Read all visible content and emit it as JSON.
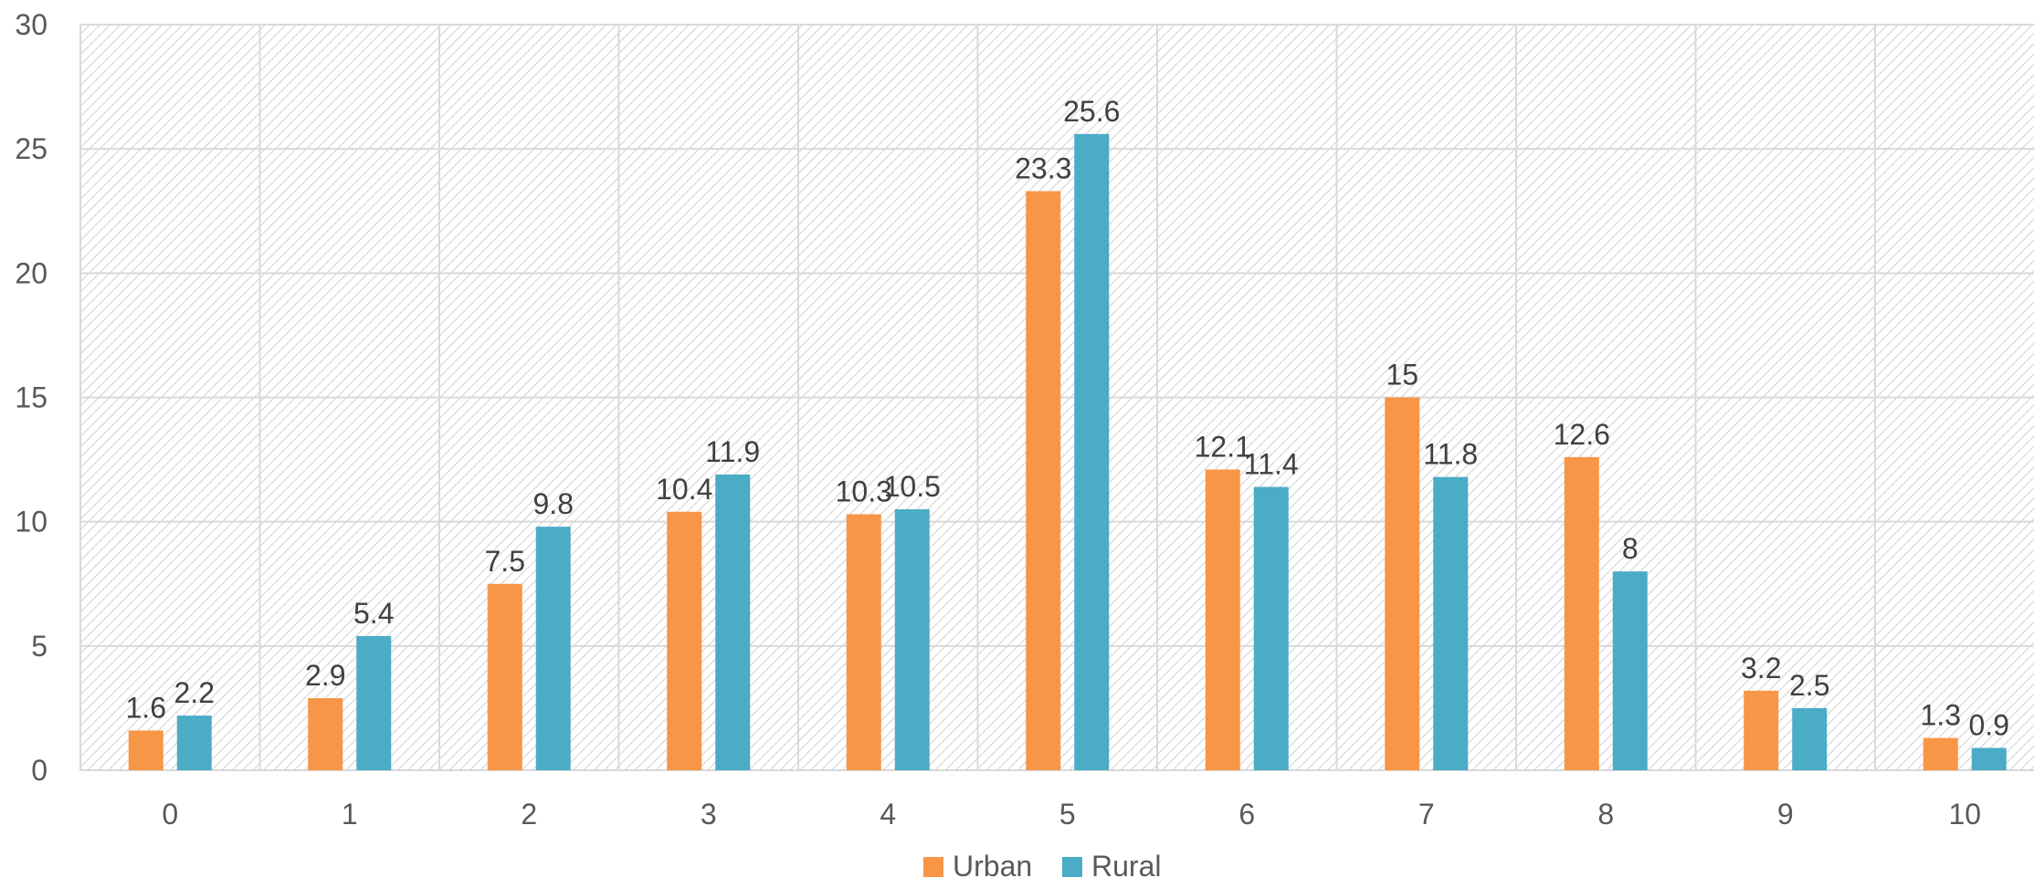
{
  "chart_data": {
    "type": "bar",
    "title": "",
    "xlabel": "",
    "ylabel": "",
    "categories": [
      "0",
      "1",
      "2",
      "3",
      "4",
      "5",
      "6",
      "7",
      "8",
      "9",
      "10"
    ],
    "series": [
      {
        "name": "Urban",
        "color": "#f79646",
        "values": [
          1.6,
          2.9,
          7.5,
          10.4,
          10.3,
          23.3,
          12.1,
          15,
          12.6,
          3.2,
          1.3
        ]
      },
      {
        "name": "Rural",
        "color": "#4bacc6",
        "values": [
          2.2,
          5.4,
          9.8,
          11.9,
          10.5,
          25.6,
          11.4,
          11.8,
          8,
          2.5,
          0.9
        ]
      }
    ],
    "ylim": [
      0,
      30
    ],
    "yticks": [
      0,
      5,
      10,
      15,
      20,
      25,
      30
    ],
    "grid": true,
    "legend": "bottom-center",
    "plot_background": "diagonal-hatch"
  }
}
